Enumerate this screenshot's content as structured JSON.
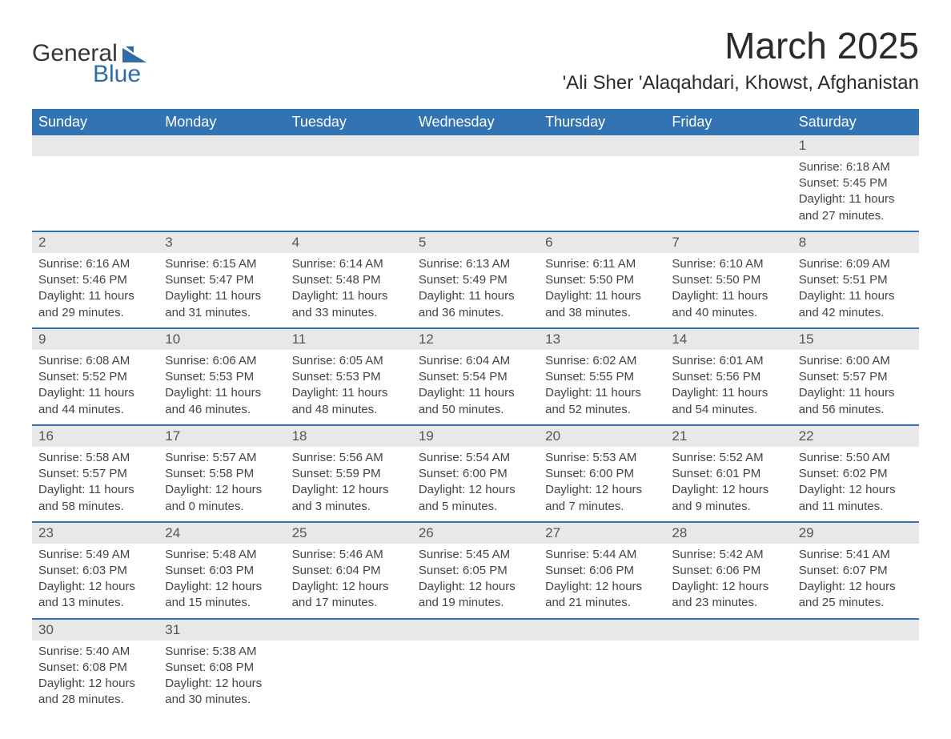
{
  "logo": {
    "text_general": "General",
    "text_blue": "Blue",
    "shape_color": "#2f6ca8"
  },
  "header": {
    "month_title": "March 2025",
    "location": "'Ali Sher 'Alaqahdari, Khowst, Afghanistan"
  },
  "colors": {
    "header_bg": "#3273b3",
    "header_text": "#ffffff",
    "daynum_bg": "#e8e8e8",
    "body_text": "#3a3a3a",
    "row_border": "#3273b3"
  },
  "columns": [
    "Sunday",
    "Monday",
    "Tuesday",
    "Wednesday",
    "Thursday",
    "Friday",
    "Saturday"
  ],
  "weeks": [
    {
      "nums": [
        "",
        "",
        "",
        "",
        "",
        "",
        "1"
      ],
      "details": [
        "",
        "",
        "",
        "",
        "",
        "",
        "Sunrise: 6:18 AM\nSunset: 5:45 PM\nDaylight: 11 hours and 27 minutes."
      ]
    },
    {
      "nums": [
        "2",
        "3",
        "4",
        "5",
        "6",
        "7",
        "8"
      ],
      "details": [
        "Sunrise: 6:16 AM\nSunset: 5:46 PM\nDaylight: 11 hours and 29 minutes.",
        "Sunrise: 6:15 AM\nSunset: 5:47 PM\nDaylight: 11 hours and 31 minutes.",
        "Sunrise: 6:14 AM\nSunset: 5:48 PM\nDaylight: 11 hours and 33 minutes.",
        "Sunrise: 6:13 AM\nSunset: 5:49 PM\nDaylight: 11 hours and 36 minutes.",
        "Sunrise: 6:11 AM\nSunset: 5:50 PM\nDaylight: 11 hours and 38 minutes.",
        "Sunrise: 6:10 AM\nSunset: 5:50 PM\nDaylight: 11 hours and 40 minutes.",
        "Sunrise: 6:09 AM\nSunset: 5:51 PM\nDaylight: 11 hours and 42 minutes."
      ]
    },
    {
      "nums": [
        "9",
        "10",
        "11",
        "12",
        "13",
        "14",
        "15"
      ],
      "details": [
        "Sunrise: 6:08 AM\nSunset: 5:52 PM\nDaylight: 11 hours and 44 minutes.",
        "Sunrise: 6:06 AM\nSunset: 5:53 PM\nDaylight: 11 hours and 46 minutes.",
        "Sunrise: 6:05 AM\nSunset: 5:53 PM\nDaylight: 11 hours and 48 minutes.",
        "Sunrise: 6:04 AM\nSunset: 5:54 PM\nDaylight: 11 hours and 50 minutes.",
        "Sunrise: 6:02 AM\nSunset: 5:55 PM\nDaylight: 11 hours and 52 minutes.",
        "Sunrise: 6:01 AM\nSunset: 5:56 PM\nDaylight: 11 hours and 54 minutes.",
        "Sunrise: 6:00 AM\nSunset: 5:57 PM\nDaylight: 11 hours and 56 minutes."
      ]
    },
    {
      "nums": [
        "16",
        "17",
        "18",
        "19",
        "20",
        "21",
        "22"
      ],
      "details": [
        "Sunrise: 5:58 AM\nSunset: 5:57 PM\nDaylight: 11 hours and 58 minutes.",
        "Sunrise: 5:57 AM\nSunset: 5:58 PM\nDaylight: 12 hours and 0 minutes.",
        "Sunrise: 5:56 AM\nSunset: 5:59 PM\nDaylight: 12 hours and 3 minutes.",
        "Sunrise: 5:54 AM\nSunset: 6:00 PM\nDaylight: 12 hours and 5 minutes.",
        "Sunrise: 5:53 AM\nSunset: 6:00 PM\nDaylight: 12 hours and 7 minutes.",
        "Sunrise: 5:52 AM\nSunset: 6:01 PM\nDaylight: 12 hours and 9 minutes.",
        "Sunrise: 5:50 AM\nSunset: 6:02 PM\nDaylight: 12 hours and 11 minutes."
      ]
    },
    {
      "nums": [
        "23",
        "24",
        "25",
        "26",
        "27",
        "28",
        "29"
      ],
      "details": [
        "Sunrise: 5:49 AM\nSunset: 6:03 PM\nDaylight: 12 hours and 13 minutes.",
        "Sunrise: 5:48 AM\nSunset: 6:03 PM\nDaylight: 12 hours and 15 minutes.",
        "Sunrise: 5:46 AM\nSunset: 6:04 PM\nDaylight: 12 hours and 17 minutes.",
        "Sunrise: 5:45 AM\nSunset: 6:05 PM\nDaylight: 12 hours and 19 minutes.",
        "Sunrise: 5:44 AM\nSunset: 6:06 PM\nDaylight: 12 hours and 21 minutes.",
        "Sunrise: 5:42 AM\nSunset: 6:06 PM\nDaylight: 12 hours and 23 minutes.",
        "Sunrise: 5:41 AM\nSunset: 6:07 PM\nDaylight: 12 hours and 25 minutes."
      ]
    },
    {
      "nums": [
        "30",
        "31",
        "",
        "",
        "",
        "",
        ""
      ],
      "details": [
        "Sunrise: 5:40 AM\nSunset: 6:08 PM\nDaylight: 12 hours and 28 minutes.",
        "Sunrise: 5:38 AM\nSunset: 6:08 PM\nDaylight: 12 hours and 30 minutes.",
        "",
        "",
        "",
        "",
        ""
      ]
    }
  ]
}
